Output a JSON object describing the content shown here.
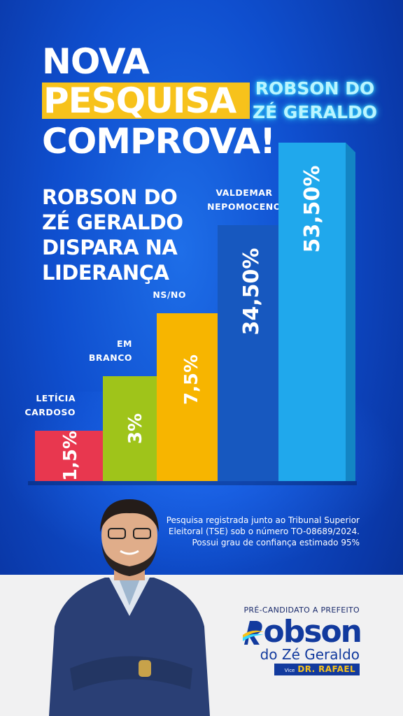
{
  "headline": {
    "line1": "NOVA",
    "line2": "PESQUISA",
    "line3": "COMPROVA!"
  },
  "subheadline": {
    "line1": "ROBSON DO",
    "line2": "ZÉ GERALDO",
    "line3": "DISPARA NA",
    "line4": "LIDERANÇA"
  },
  "candidate_title": {
    "line1": "ROBSON DO",
    "line2": "ZÉ GERALDO"
  },
  "chart_data": {
    "type": "bar",
    "categories": [
      [
        "LETÍCIA",
        "CARDOSO"
      ],
      [
        "EM",
        "BRANCO"
      ],
      [
        "NS/NO"
      ],
      [
        "VALDEMAR",
        "NEPOMOCENO"
      ],
      [
        ""
      ]
    ],
    "values": [
      1.5,
      3,
      7.5,
      34.5,
      53.5
    ],
    "value_labels": [
      "1,5%",
      "3%",
      "7,5%",
      "34,50%",
      "53,50%"
    ],
    "colors": [
      "#e8374f",
      "#9fc41a",
      "#f7b500",
      "#1758bf",
      "#20a8ec"
    ],
    "colors_side": [
      "#b52238",
      "#7a9c0f",
      "#c98e00",
      "#0d3f91",
      "#1385c4"
    ]
  },
  "disclaimer": {
    "line1": "Pesquisa registrada junto ao Tribunal Superior",
    "line2": "Eleitoral (TSE) sob o número TO-08689/2024.",
    "line3": "Possui grau de confiança estimado 95%"
  },
  "branding": {
    "pre_title": "PRÉ-CANDIDATO A PREFEITO",
    "name": "obson",
    "surname": "do Zé Geraldo",
    "vice_prefix": "Vice",
    "vice_name": "DR. RAFAEL"
  },
  "colors": {
    "accent_yellow": "#f7c21b",
    "brand_blue": "#123a9e",
    "glow_cyan": "#35d8ff"
  }
}
